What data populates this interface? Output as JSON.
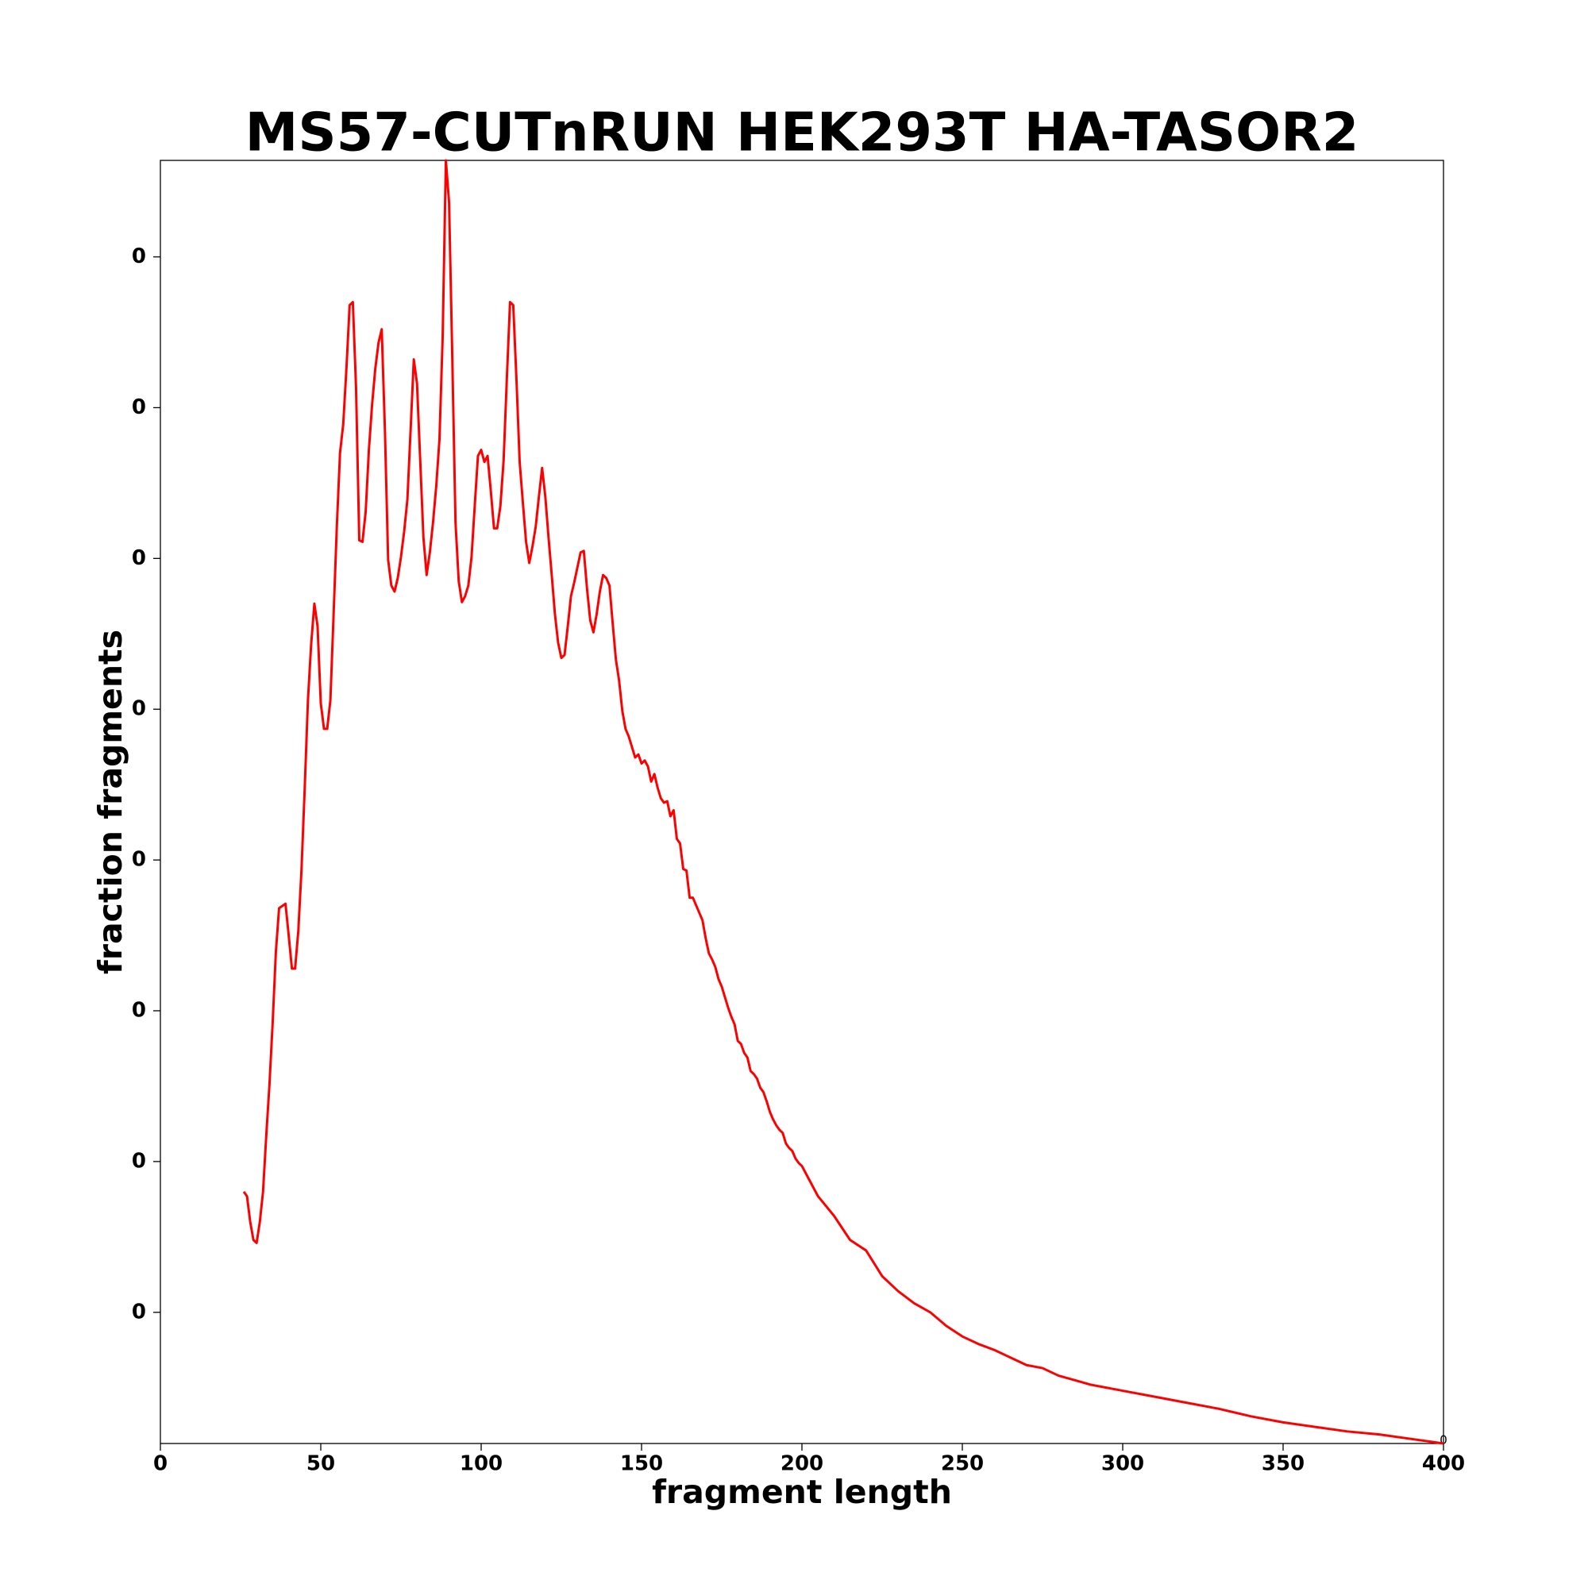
{
  "chart_data": {
    "type": "line",
    "title": "MS57-CUTnRUN HEK293T HA-TASOR2",
    "x_label": "fragment length",
    "y_label": "fraction fragments",
    "annotation": "0",
    "x": [
      26,
      27,
      28,
      29,
      30,
      31,
      32,
      33,
      34,
      35,
      36,
      37,
      39,
      40,
      41,
      42,
      43,
      44,
      45,
      46,
      47,
      48,
      49,
      50,
      51,
      52,
      53,
      54,
      55,
      56,
      57,
      58,
      59,
      60,
      61,
      62,
      63,
      64,
      65,
      66,
      67,
      68,
      69,
      70,
      71,
      72,
      73,
      74,
      75,
      76,
      77,
      78,
      79,
      80,
      81,
      82,
      83,
      84,
      85,
      86,
      87,
      88,
      89,
      90,
      91,
      92,
      93,
      94,
      95,
      96,
      97,
      98,
      99,
      100,
      101,
      102,
      103,
      104,
      105,
      106,
      107,
      108,
      109,
      110,
      111,
      112,
      113,
      114,
      115,
      116,
      117,
      118,
      119,
      120,
      121,
      122,
      123,
      124,
      125,
      126,
      127,
      128,
      129,
      130,
      131,
      132,
      133,
      134,
      135,
      136,
      137,
      138,
      139,
      140,
      141,
      142,
      143,
      144,
      145,
      146,
      147,
      148,
      149,
      150,
      151,
      152,
      153,
      154,
      155,
      156,
      157,
      158,
      159,
      160,
      161,
      162,
      163,
      164,
      165,
      166,
      167,
      168,
      169,
      170,
      171,
      172,
      173,
      174,
      175,
      176,
      177,
      178,
      179,
      180,
      181,
      182,
      183,
      184,
      185,
      186,
      187,
      188,
      189,
      190,
      191,
      192,
      193,
      194,
      195,
      196,
      197,
      198,
      199,
      200,
      205,
      210,
      215,
      220,
      225,
      230,
      235,
      240,
      245,
      250,
      255,
      260,
      265,
      270,
      275,
      280,
      285,
      290,
      295,
      300,
      310,
      320,
      330,
      340,
      350,
      360,
      370,
      380,
      390,
      400
    ],
    "series": [
      {
        "name": "fraction fragments",
        "color": "#ff0000",
        "values": [
          0.0018,
          0.00177,
          0.0016,
          0.00148,
          0.00146,
          0.0016,
          0.0018,
          0.00217,
          0.00251,
          0.00292,
          0.00339,
          0.00368,
          0.00371,
          0.0035,
          0.00328,
          0.00328,
          0.00353,
          0.00394,
          0.00448,
          0.00506,
          0.00543,
          0.0057,
          0.00555,
          0.00504,
          0.00487,
          0.00487,
          0.00506,
          0.00563,
          0.00621,
          0.0067,
          0.00689,
          0.00726,
          0.00768,
          0.0077,
          0.00713,
          0.00612,
          0.00611,
          0.00631,
          0.00672,
          0.00702,
          0.00726,
          0.00743,
          0.00752,
          0.00685,
          0.00599,
          0.00582,
          0.00578,
          0.00587,
          0.00601,
          0.00618,
          0.00639,
          0.00685,
          0.00732,
          0.00716,
          0.00665,
          0.00614,
          0.00589,
          0.00604,
          0.00624,
          0.00648,
          0.00679,
          0.00747,
          0.00864,
          0.00836,
          0.00733,
          0.00624,
          0.00585,
          0.00571,
          0.00575,
          0.00582,
          0.00601,
          0.00635,
          0.00668,
          0.00672,
          0.00664,
          0.00668,
          0.00645,
          0.0062,
          0.0062,
          0.00635,
          0.00665,
          0.00719,
          0.0077,
          0.00768,
          0.00719,
          0.00664,
          0.00637,
          0.00611,
          0.00597,
          0.00608,
          0.00621,
          0.00641,
          0.0066,
          0.00641,
          0.00614,
          0.00589,
          0.00563,
          0.00544,
          0.00534,
          0.00536,
          0.00555,
          0.00575,
          0.00584,
          0.00594,
          0.00604,
          0.00605,
          0.0058,
          0.00559,
          0.00551,
          0.00563,
          0.00578,
          0.00589,
          0.00587,
          0.00582,
          0.00557,
          0.00533,
          0.00519,
          0.00499,
          0.00487,
          0.00482,
          0.00475,
          0.00468,
          0.0047,
          0.00464,
          0.00466,
          0.00462,
          0.00452,
          0.00457,
          0.00448,
          0.00441,
          0.00438,
          0.00439,
          0.00429,
          0.00433,
          0.00414,
          0.00411,
          0.00394,
          0.00393,
          0.00375,
          0.00375,
          0.0037,
          0.00365,
          0.0036,
          0.00348,
          0.00338,
          0.00334,
          0.00329,
          0.00321,
          0.00316,
          0.00309,
          0.00302,
          0.00296,
          0.00291,
          0.0028,
          0.00278,
          0.00272,
          0.00269,
          0.0026,
          0.00258,
          0.00255,
          0.00249,
          0.00246,
          0.0024,
          0.00233,
          0.00228,
          0.00224,
          0.00221,
          0.00219,
          0.00212,
          0.00209,
          0.00207,
          0.00202,
          0.00199,
          0.00197,
          0.00177,
          0.00164,
          0.00148,
          0.00141,
          0.00124,
          0.00114,
          0.00106,
          0.001,
          0.00091,
          0.00084,
          0.00079,
          0.00075,
          0.0007,
          0.00065,
          0.00063,
          0.00058,
          0.00055,
          0.00052,
          0.0005,
          0.00048,
          0.00044,
          0.0004,
          0.00036,
          0.00031,
          0.00027,
          0.00024,
          0.00021,
          0.00019,
          0.00016,
          0.00013
        ]
      }
    ],
    "xlim": [
      0,
      400
    ],
    "xticks": [
      0,
      50,
      100,
      150,
      200,
      250,
      300,
      350,
      400
    ],
    "ylim": [
      0.00013,
      0.00864
    ],
    "yticks": [
      {
        "value": 0.001,
        "label": "0"
      },
      {
        "value": 0.002,
        "label": "0"
      },
      {
        "value": 0.003,
        "label": "0"
      },
      {
        "value": 0.004,
        "label": "0"
      },
      {
        "value": 0.005,
        "label": "0"
      },
      {
        "value": 0.006,
        "label": "0"
      },
      {
        "value": 0.007,
        "label": "0"
      },
      {
        "value": 0.008,
        "label": "0"
      }
    ]
  }
}
